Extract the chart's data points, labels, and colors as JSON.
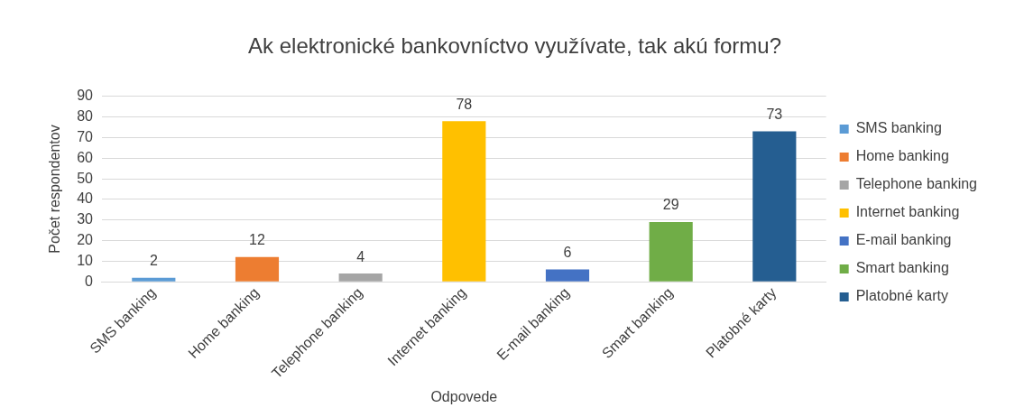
{
  "chart_data": {
    "type": "bar",
    "title": "Ak elektronické bankovníctvo využívate, tak akú formu?",
    "xlabel": "Odpovede",
    "ylabel": "Počet respondentov",
    "categories": [
      "SMS banking",
      "Home banking",
      "Telephone banking",
      "Internet banking",
      "E-mail banking",
      "Smart banking",
      "Platobné karty"
    ],
    "series": [
      {
        "name": "SMS banking",
        "color": "#5b9bd5",
        "values": [
          2,
          null,
          null,
          null,
          null,
          null,
          null
        ]
      },
      {
        "name": "Home banking",
        "color": "#ed7d31",
        "values": [
          null,
          12,
          null,
          null,
          null,
          null,
          null
        ]
      },
      {
        "name": "Telephone banking",
        "color": "#a5a5a5",
        "values": [
          null,
          null,
          4,
          null,
          null,
          null,
          null
        ]
      },
      {
        "name": "Internet banking",
        "color": "#ffc000",
        "values": [
          null,
          null,
          null,
          78,
          null,
          null,
          null
        ]
      },
      {
        "name": "E-mail banking",
        "color": "#4472c4",
        "values": [
          null,
          null,
          null,
          null,
          6,
          null,
          null
        ]
      },
      {
        "name": "Smart banking",
        "color": "#70ad47",
        "values": [
          null,
          null,
          null,
          null,
          null,
          29,
          null
        ]
      },
      {
        "name": "Platobné karty",
        "color": "#255e91",
        "values": [
          null,
          null,
          null,
          null,
          null,
          null,
          73
        ]
      }
    ],
    "ylim": [
      0,
      90
    ],
    "yticks": [
      0,
      10,
      20,
      30,
      40,
      50,
      60,
      70,
      80,
      90
    ],
    "grid": "y",
    "legend": "right",
    "data_labels": true
  }
}
